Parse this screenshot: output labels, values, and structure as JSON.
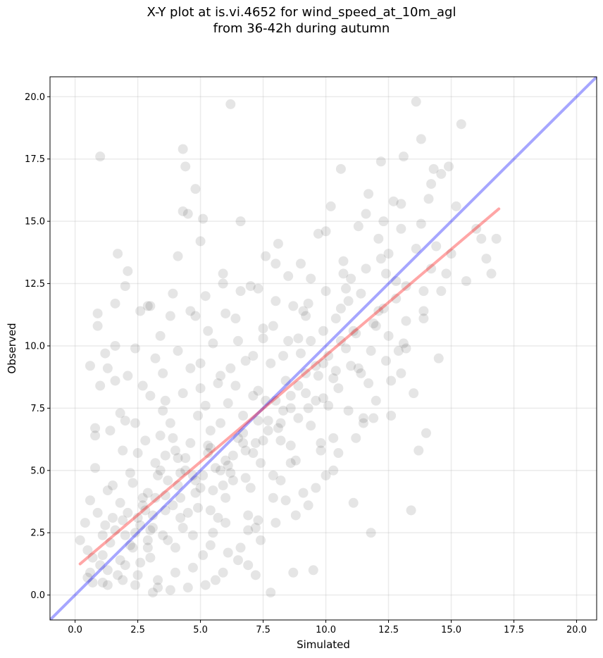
{
  "chart_data": {
    "type": "scatter",
    "title_lines": [
      "X-Y plot at is.vi.4652 for wind_speed_at_10m_agl",
      "from 36-42h during autumn"
    ],
    "xlabel": "Simulated",
    "ylabel": "Observed",
    "xlim": [
      -1.0,
      20.8
    ],
    "ylim": [
      -1.0,
      20.8
    ],
    "xticks": [
      0.0,
      2.5,
      5.0,
      7.5,
      10.0,
      12.5,
      15.0,
      17.5,
      20.0
    ],
    "yticks": [
      0.0,
      2.5,
      5.0,
      7.5,
      10.0,
      12.5,
      15.0,
      17.5,
      20.0
    ],
    "xtick_labels": [
      "0.0",
      "2.5",
      "5.0",
      "7.5",
      "10.0",
      "12.5",
      "15.0",
      "17.5",
      "20.0"
    ],
    "ytick_labels": [
      "0.0",
      "2.5",
      "5.0",
      "7.5",
      "10.0",
      "12.5",
      "15.0",
      "17.5",
      "20.0"
    ],
    "grid": true,
    "point_color": "#000000",
    "point_alpha": 0.1,
    "one_to_one_line": {
      "color": "#0000ff",
      "alpha": 0.35,
      "x": [
        -1.0,
        20.8
      ],
      "y": [
        -1.0,
        20.8
      ]
    },
    "regression_line": {
      "color": "#ff0000",
      "alpha": 0.35,
      "x": [
        0.2,
        16.9
      ],
      "y": [
        1.25,
        15.5
      ]
    },
    "points": [
      [
        0.2,
        2.2
      ],
      [
        0.4,
        2.9
      ],
      [
        0.5,
        1.8
      ],
      [
        0.6,
        3.8
      ],
      [
        0.7,
        0.5
      ],
      [
        0.8,
        6.7
      ],
      [
        0.8,
        5.1
      ],
      [
        0.9,
        11.3
      ],
      [
        0.9,
        10.8
      ],
      [
        1.0,
        8.4
      ],
      [
        1.0,
        1.2
      ],
      [
        1.1,
        2.4
      ],
      [
        1.2,
        9.7
      ],
      [
        1.3,
        4.2
      ],
      [
        1.3,
        0.4
      ],
      [
        1.4,
        6.6
      ],
      [
        1.5,
        3.1
      ],
      [
        1.6,
        8.6
      ],
      [
        1.6,
        11.7
      ],
      [
        1.7,
        13.7
      ],
      [
        1.8,
        1.4
      ],
      [
        1.9,
        5.8
      ],
      [
        2.0,
        7.0
      ],
      [
        2.0,
        12.4
      ],
      [
        2.1,
        13.0
      ],
      [
        2.2,
        2.0
      ],
      [
        2.3,
        4.5
      ],
      [
        2.4,
        9.9
      ],
      [
        2.5,
        0.8
      ],
      [
        2.6,
        11.4
      ],
      [
        2.7,
        3.6
      ],
      [
        2.8,
        6.2
      ],
      [
        2.9,
        1.9
      ],
      [
        3.0,
        8.0
      ],
      [
        3.0,
        11.6
      ],
      [
        3.1,
        2.7
      ],
      [
        3.2,
        5.3
      ],
      [
        3.3,
        0.3
      ],
      [
        3.4,
        10.4
      ],
      [
        3.5,
        7.4
      ],
      [
        3.6,
        4.0
      ],
      [
        3.7,
        2.2
      ],
      [
        3.8,
        11.2
      ],
      [
        3.9,
        6.3
      ],
      [
        4.0,
        0.9
      ],
      [
        4.1,
        13.6
      ],
      [
        4.2,
        3.1
      ],
      [
        4.3,
        17.9
      ],
      [
        4.4,
        17.2
      ],
      [
        4.4,
        5.5
      ],
      [
        4.5,
        15.3
      ],
      [
        4.6,
        9.1
      ],
      [
        4.7,
        2.4
      ],
      [
        4.8,
        16.3
      ],
      [
        4.9,
        7.2
      ],
      [
        5.0,
        4.3
      ],
      [
        5.0,
        14.2
      ],
      [
        5.1,
        1.6
      ],
      [
        5.2,
        12.0
      ],
      [
        5.3,
        6.0
      ],
      [
        5.4,
        3.4
      ],
      [
        5.5,
        10.1
      ],
      [
        5.6,
        0.6
      ],
      [
        5.7,
        8.5
      ],
      [
        5.8,
        5.0
      ],
      [
        5.9,
        12.9
      ],
      [
        6.0,
        2.9
      ],
      [
        6.1,
        7.7
      ],
      [
        6.2,
        19.7
      ],
      [
        6.3,
        4.6
      ],
      [
        6.4,
        11.1
      ],
      [
        6.5,
        1.4
      ],
      [
        6.6,
        15.0
      ],
      [
        6.7,
        6.5
      ],
      [
        6.8,
        9.4
      ],
      [
        6.9,
        3.2
      ],
      [
        7.0,
        12.4
      ],
      [
        7.1,
        5.7
      ],
      [
        7.2,
        0.8
      ],
      [
        7.3,
        8.2
      ],
      [
        7.4,
        2.2
      ],
      [
        7.5,
        10.7
      ],
      [
        7.6,
        13.6
      ],
      [
        7.7,
        7.0
      ],
      [
        7.8,
        0.1
      ],
      [
        7.9,
        4.8
      ],
      [
        8.0,
        11.8
      ],
      [
        8.1,
        14.1
      ],
      [
        8.2,
        6.2
      ],
      [
        8.3,
        9.6
      ],
      [
        8.4,
        3.8
      ],
      [
        8.5,
        12.8
      ],
      [
        8.6,
        7.5
      ],
      [
        8.7,
        0.9
      ],
      [
        8.8,
        5.4
      ],
      [
        8.9,
        10.3
      ],
      [
        9.0,
        13.3
      ],
      [
        9.1,
        4.1
      ],
      [
        9.2,
        8.9
      ],
      [
        9.3,
        11.7
      ],
      [
        9.4,
        6.8
      ],
      [
        9.5,
        1.0
      ],
      [
        9.6,
        9.2
      ],
      [
        9.7,
        14.5
      ],
      [
        9.8,
        5.8
      ],
      [
        9.9,
        7.9
      ],
      [
        10.0,
        12.2
      ],
      [
        10.1,
        9.6
      ],
      [
        10.2,
        15.6
      ],
      [
        10.3,
        6.3
      ],
      [
        10.4,
        11.1
      ],
      [
        10.5,
        8.3
      ],
      [
        10.6,
        17.1
      ],
      [
        10.7,
        13.4
      ],
      [
        10.8,
        9.9
      ],
      [
        10.9,
        7.4
      ],
      [
        11.0,
        12.7
      ],
      [
        11.1,
        3.7
      ],
      [
        11.2,
        10.5
      ],
      [
        11.3,
        14.8
      ],
      [
        11.4,
        8.9
      ],
      [
        11.5,
        6.9
      ],
      [
        11.6,
        13.1
      ],
      [
        11.7,
        16.1
      ],
      [
        11.8,
        2.5
      ],
      [
        11.9,
        10.9
      ],
      [
        12.0,
        7.8
      ],
      [
        12.1,
        14.3
      ],
      [
        12.2,
        17.4
      ],
      [
        12.3,
        11.5
      ],
      [
        12.4,
        9.4
      ],
      [
        12.5,
        13.7
      ],
      [
        12.6,
        7.2
      ],
      [
        12.7,
        15.8
      ],
      [
        12.8,
        11.9
      ],
      [
        12.9,
        9.8
      ],
      [
        13.0,
        14.7
      ],
      [
        13.1,
        17.6
      ],
      [
        13.2,
        12.4
      ],
      [
        13.4,
        3.4
      ],
      [
        13.5,
        8.1
      ],
      [
        13.6,
        19.8
      ],
      [
        13.7,
        5.8
      ],
      [
        13.8,
        18.3
      ],
      [
        13.9,
        11.4
      ],
      [
        14.0,
        6.5
      ],
      [
        14.1,
        15.9
      ],
      [
        14.2,
        13.1
      ],
      [
        14.3,
        17.1
      ],
      [
        14.5,
        9.5
      ],
      [
        14.6,
        16.9
      ],
      [
        14.8,
        12.9
      ],
      [
        15.0,
        13.7
      ],
      [
        15.2,
        15.6
      ],
      [
        15.4,
        18.9
      ],
      [
        15.6,
        12.6
      ],
      [
        16.0,
        14.7
      ],
      [
        16.2,
        14.3
      ],
      [
        16.4,
        13.5
      ],
      [
        16.6,
        12.9
      ],
      [
        16.8,
        14.3
      ],
      [
        3.2,
        3.9
      ],
      [
        4.1,
        4.4
      ],
      [
        5.6,
        5.1
      ],
      [
        6.3,
        5.6
      ],
      [
        2.6,
        2.8
      ],
      [
        3.7,
        4.6
      ],
      [
        4.9,
        3.5
      ],
      [
        5.8,
        6.9
      ],
      [
        7.2,
        6.1
      ],
      [
        2.1,
        3.3
      ],
      [
        2.9,
        4.1
      ],
      [
        3.5,
        2.4
      ],
      [
        4.4,
        5.0
      ],
      [
        5.1,
        4.8
      ],
      [
        6.0,
        3.9
      ],
      [
        6.7,
        7.2
      ],
      [
        7.4,
        5.3
      ],
      [
        8.1,
        6.7
      ],
      [
        8.9,
        7.1
      ],
      [
        1.4,
        2.1
      ],
      [
        1.9,
        3.0
      ],
      [
        2.4,
        2.5
      ],
      [
        2.8,
        3.4
      ],
      [
        3.3,
        4.8
      ],
      [
        3.9,
        3.6
      ],
      [
        4.6,
        6.1
      ],
      [
        5.3,
        5.7
      ],
      [
        5.9,
        4.4
      ],
      [
        6.5,
        6.3
      ],
      [
        7.1,
        8.0
      ],
      [
        7.7,
        6.6
      ],
      [
        8.4,
        8.6
      ],
      [
        9.2,
        8.1
      ],
      [
        9.9,
        9.3
      ],
      [
        10.6,
        10.2
      ],
      [
        11.3,
        9.1
      ],
      [
        12.0,
        10.8
      ],
      [
        1.1,
        1.6
      ],
      [
        1.6,
        2.6
      ],
      [
        2.3,
        1.9
      ],
      [
        2.7,
        3.9
      ],
      [
        3.1,
        3.2
      ],
      [
        3.6,
        5.6
      ],
      [
        4.2,
        4.9
      ],
      [
        4.8,
        4.1
      ],
      [
        5.4,
        6.6
      ],
      [
        6.1,
        5.2
      ],
      [
        6.8,
        4.7
      ],
      [
        7.6,
        7.8
      ],
      [
        8.3,
        7.4
      ],
      [
        9.0,
        9.7
      ],
      [
        9.7,
        8.8
      ],
      [
        10.4,
        9.0
      ],
      [
        11.1,
        10.6
      ],
      [
        0.7,
        1.5
      ],
      [
        1.2,
        2.8
      ],
      [
        1.8,
        3.7
      ],
      [
        2.2,
        4.9
      ],
      [
        2.9,
        2.2
      ],
      [
        3.4,
        6.4
      ],
      [
        4.0,
        5.8
      ],
      [
        4.5,
        3.3
      ],
      [
        5.2,
        7.6
      ],
      [
        5.7,
        3.1
      ],
      [
        6.4,
        8.4
      ],
      [
        7.0,
        4.3
      ],
      [
        7.8,
        9.3
      ],
      [
        8.6,
        6.0
      ],
      [
        9.4,
        10.2
      ],
      [
        10.1,
        7.6
      ],
      [
        10.9,
        11.8
      ],
      [
        11.7,
        8.5
      ],
      [
        12.4,
        12.9
      ],
      [
        13.1,
        10.1
      ],
      [
        0.9,
        3.3
      ],
      [
        1.5,
        4.4
      ],
      [
        2.0,
        1.2
      ],
      [
        2.5,
        5.7
      ],
      [
        3.0,
        1.5
      ],
      [
        3.8,
        6.9
      ],
      [
        4.3,
        2.7
      ],
      [
        5.0,
        8.3
      ],
      [
        5.5,
        2.5
      ],
      [
        6.2,
        9.1
      ],
      [
        6.9,
        2.6
      ],
      [
        7.5,
        10.3
      ],
      [
        8.2,
        4.6
      ],
      [
        9.1,
        11.4
      ],
      [
        9.8,
        6.1
      ],
      [
        10.7,
        12.9
      ],
      [
        11.5,
        7.1
      ],
      [
        12.2,
        13.5
      ],
      [
        13.0,
        8.9
      ],
      [
        13.8,
        14.9
      ],
      [
        0.6,
        0.9
      ],
      [
        1.3,
        1.0
      ],
      [
        1.9,
        0.6
      ],
      [
        2.6,
        1.3
      ],
      [
        3.3,
        0.6
      ],
      [
        4.0,
        1.9
      ],
      [
        4.7,
        1.1
      ],
      [
        5.4,
        2.0
      ],
      [
        6.1,
        1.7
      ],
      [
        6.9,
        1.2
      ],
      [
        7.3,
        3.0
      ],
      [
        8.0,
        2.9
      ],
      [
        8.8,
        3.2
      ],
      [
        9.6,
        4.3
      ],
      [
        10.3,
        5.0
      ],
      [
        4.3,
        15.4
      ],
      [
        1.0,
        17.6
      ],
      [
        5.1,
        15.1
      ],
      [
        5.9,
        12.5
      ],
      [
        4.6,
        11.4
      ],
      [
        3.9,
        12.1
      ],
      [
        2.9,
        11.6
      ],
      [
        2.1,
        8.8
      ],
      [
        1.6,
        10.0
      ],
      [
        1.3,
        9.1
      ],
      [
        0.8,
        6.4
      ],
      [
        0.6,
        9.2
      ],
      [
        1.8,
        7.3
      ],
      [
        2.4,
        6.9
      ],
      [
        3.2,
        9.5
      ],
      [
        3.6,
        7.8
      ],
      [
        4.1,
        9.8
      ],
      [
        4.8,
        11.2
      ],
      [
        5.3,
        10.6
      ],
      [
        6.0,
        11.3
      ],
      [
        6.6,
        12.2
      ],
      [
        7.3,
        12.3
      ],
      [
        8.0,
        13.3
      ],
      [
        8.7,
        11.6
      ],
      [
        9.4,
        12.7
      ],
      [
        10.0,
        14.6
      ],
      [
        10.8,
        12.3
      ],
      [
        11.6,
        15.3
      ],
      [
        12.3,
        15.0
      ],
      [
        13.0,
        15.7
      ],
      [
        13.6,
        13.9
      ],
      [
        14.2,
        16.5
      ],
      [
        14.9,
        17.2
      ],
      [
        14.4,
        14.0
      ],
      [
        13.9,
        12.2
      ],
      [
        13.2,
        11.0
      ],
      [
        12.6,
        8.6
      ],
      [
        11.9,
        7.1
      ],
      [
        11.2,
        6.3
      ],
      [
        10.5,
        5.7
      ],
      [
        10.0,
        4.8
      ],
      [
        9.3,
        3.6
      ],
      [
        8.6,
        5.3
      ],
      [
        7.9,
        3.9
      ],
      [
        7.2,
        2.7
      ],
      [
        6.6,
        1.9
      ],
      [
        5.9,
        0.9
      ],
      [
        5.2,
        0.4
      ],
      [
        4.5,
        0.3
      ],
      [
        3.8,
        0.2
      ],
      [
        3.1,
        0.1
      ],
      [
        2.4,
        0.4
      ],
      [
        1.7,
        0.8
      ],
      [
        1.1,
        0.5
      ],
      [
        0.5,
        0.7
      ],
      [
        2.7,
        8.4
      ],
      [
        3.5,
        8.9
      ],
      [
        4.3,
        8.1
      ],
      [
        5.0,
        9.3
      ],
      [
        5.8,
        8.8
      ],
      [
        6.5,
        10.2
      ],
      [
        7.1,
        9.6
      ],
      [
        7.9,
        10.8
      ],
      [
        8.5,
        10.2
      ],
      [
        9.2,
        11.2
      ],
      [
        9.9,
        10.6
      ],
      [
        10.6,
        11.5
      ],
      [
        11.4,
        12.1
      ],
      [
        12.1,
        11.4
      ],
      [
        12.8,
        12.6
      ],
      [
        3.4,
        5.0
      ],
      [
        4.1,
        5.5
      ],
      [
        4.7,
        4.8
      ],
      [
        5.4,
        5.9
      ],
      [
        6.0,
        5.4
      ],
      [
        6.7,
        6.1
      ],
      [
        7.3,
        7.0
      ],
      [
        8.0,
        7.8
      ],
      [
        8.6,
        8.0
      ],
      [
        9.3,
        7.5
      ],
      [
        2.0,
        2.4
      ],
      [
        2.5,
        3.1
      ],
      [
        3.0,
        2.6
      ],
      [
        3.6,
        3.4
      ],
      [
        4.2,
        3.9
      ],
      [
        4.8,
        4.6
      ],
      [
        5.5,
        4.2
      ],
      [
        6.2,
        4.9
      ],
      [
        6.8,
        5.8
      ],
      [
        7.5,
        6.2
      ],
      [
        8.2,
        6.9
      ],
      [
        8.9,
        8.4
      ],
      [
        9.6,
        7.8
      ],
      [
        10.3,
        8.7
      ],
      [
        11.0,
        9.2
      ],
      [
        11.8,
        9.8
      ],
      [
        12.5,
        10.4
      ],
      [
        13.2,
        9.9
      ],
      [
        13.9,
        11.1
      ],
      [
        14.6,
        12.2
      ]
    ]
  }
}
